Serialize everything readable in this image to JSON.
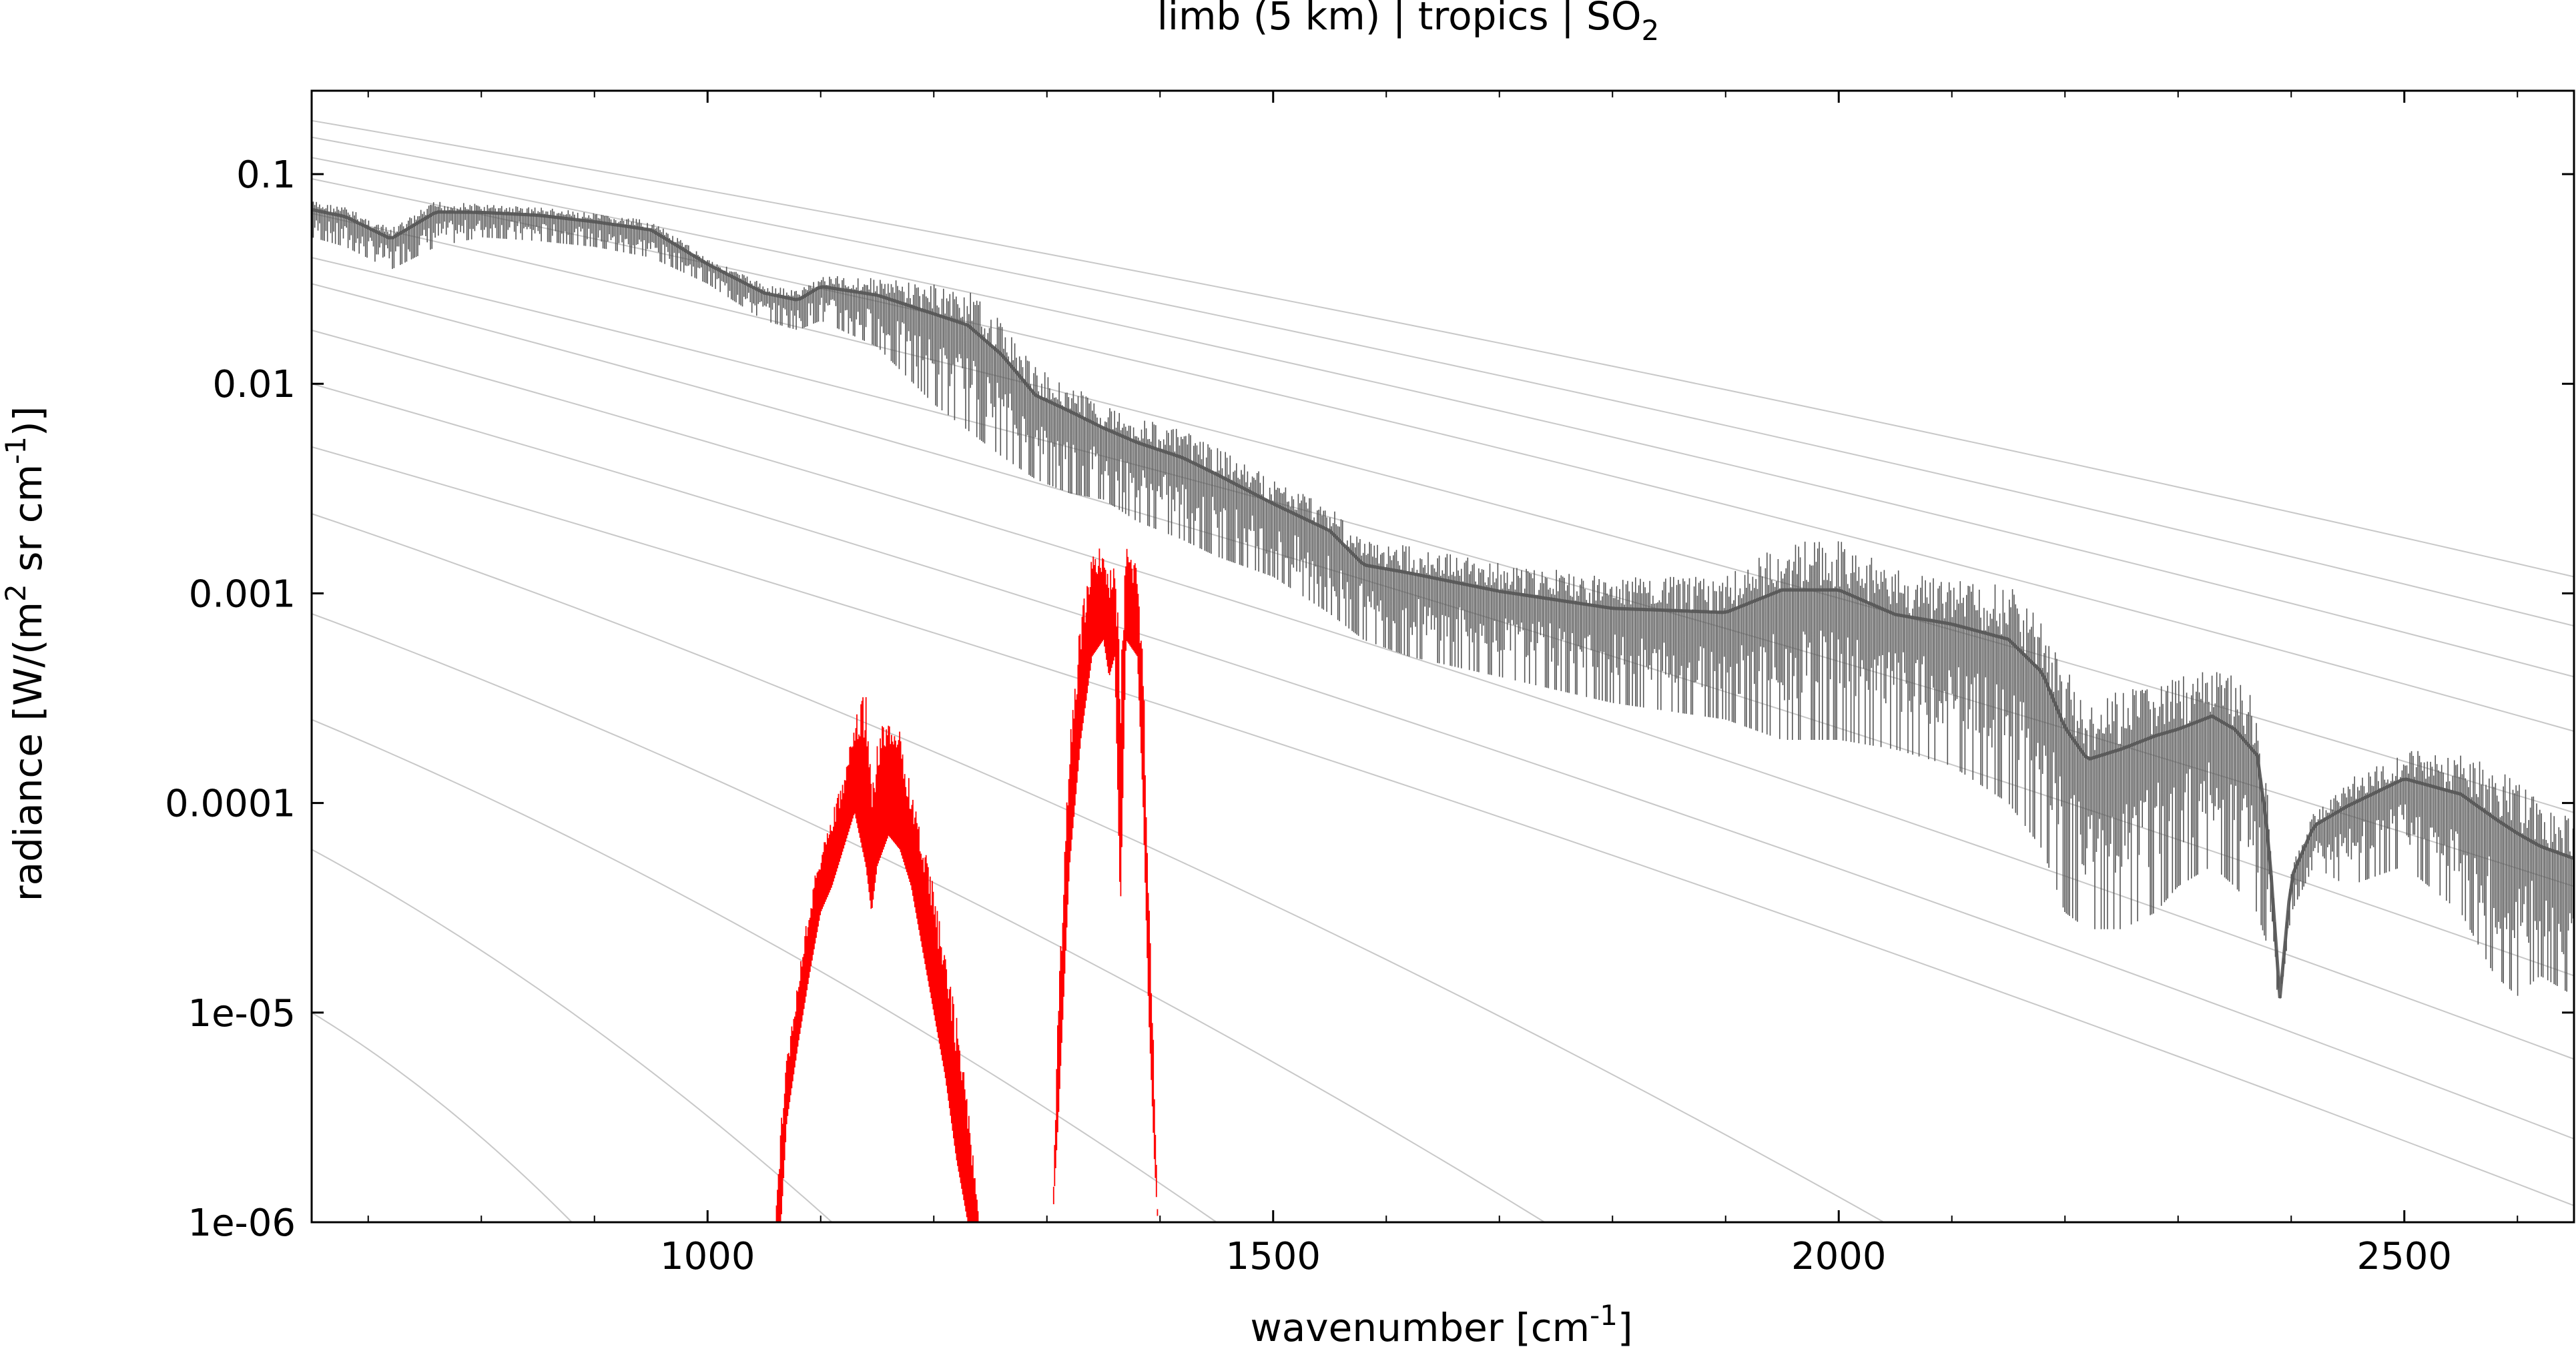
{
  "chart_data": {
    "type": "line",
    "title": {
      "prefix": "limb (5 km) | tropics | SO",
      "subscript": "2"
    },
    "xlabel": {
      "prefix": "wavenumber [cm",
      "superscript": "-1",
      "suffix": "]"
    },
    "ylabel": {
      "part1": "radiance [W/(m",
      "sup1": "2",
      "part2": " sr cm",
      "sup2": "-1",
      "part3": ")]"
    },
    "x_range": [
      650,
      2650
    ],
    "y_range": [
      1e-06,
      0.25
    ],
    "y_scale": "log",
    "x_ticks": [
      {
        "value": 1000,
        "label": "1000"
      },
      {
        "value": 1500,
        "label": "1500"
      },
      {
        "value": 2000,
        "label": "2000"
      },
      {
        "value": 2500,
        "label": "2500"
      }
    ],
    "y_ticks": [
      {
        "value": 0.1,
        "label": "0.1"
      },
      {
        "value": 0.01,
        "label": "0.01"
      },
      {
        "value": 0.001,
        "label": "0.001"
      },
      {
        "value": 0.0001,
        "label": "0.0001"
      },
      {
        "value": 1e-05,
        "label": "1e-05"
      },
      {
        "value": 1e-06,
        "label": "1e-06"
      }
    ],
    "grid": false,
    "legend": "none",
    "colors": {
      "total_spectrum": "#555555",
      "so2_contribution": "#ff0000",
      "reference_curves": "#c8c8c8"
    },
    "reference_curves_at_edges": [
      {
        "y_at_650": 0.18,
        "y_at_2650": 0.0012
      },
      {
        "y_at_650": 0.15,
        "y_at_2650": 0.0007
      },
      {
        "y_at_650": 0.12,
        "y_at_2650": 0.0004
      },
      {
        "y_at_650": 0.095,
        "y_at_2650": 0.00022
      },
      {
        "y_at_650": 0.065,
        "y_at_2650": 9e-05
      },
      {
        "y_at_650": 0.04,
        "y_at_2650": 4e-05
      },
      {
        "y_at_650": 0.03,
        "y_at_2650": 1.5e-05
      },
      {
        "y_at_650": 0.018,
        "y_at_2650": 6e-06
      },
      {
        "y_at_650": 0.01,
        "y_at_2650": 2.5e-06
      },
      {
        "y_at_650": 0.005,
        "y_at_2650": 1.2e-06
      }
    ],
    "reference_curves_steep": [
      {
        "y_at_650": 0.0024,
        "x_at_ymin": 2040
      },
      {
        "y_at_650": 0.0008,
        "x_at_ymin": 1740
      },
      {
        "y_at_650": 0.00025,
        "x_at_ymin": 1450
      },
      {
        "y_at_650": 6e-05,
        "x_at_ymin": 1110
      },
      {
        "y_at_650": 1e-05,
        "x_at_ymin": 880
      }
    ],
    "series": [
      {
        "role": "total",
        "envelope_x": [
          650,
          680,
          720,
          760,
          800,
          850,
          900,
          950,
          1000,
          1050,
          1080,
          1100,
          1150,
          1200,
          1230,
          1260,
          1290,
          1320,
          1350,
          1380,
          1420,
          1450,
          1500,
          1550,
          1580,
          1620,
          1700,
          1800,
          1900,
          1950,
          2000,
          2050,
          2100,
          2150,
          2180,
          2200,
          2220,
          2250,
          2280,
          2300,
          2330,
          2350,
          2370,
          2380,
          2390,
          2400,
          2420,
          2450,
          2500,
          2550,
          2580,
          2600,
          2620,
          2650
        ],
        "envelope_top": [
          0.075,
          0.07,
          0.055,
          0.075,
          0.072,
          0.07,
          0.065,
          0.06,
          0.04,
          0.03,
          0.028,
          0.033,
          0.032,
          0.03,
          0.028,
          0.02,
          0.012,
          0.01,
          0.008,
          0.007,
          0.006,
          0.005,
          0.0035,
          0.0027,
          0.0018,
          0.0017,
          0.0014,
          0.0012,
          0.0012,
          0.0018,
          0.0018,
          0.0013,
          0.0012,
          0.0011,
          0.0008,
          0.00045,
          0.0003,
          0.00035,
          0.0004,
          0.0004,
          0.00045,
          0.0004,
          0.0003,
          0.0001,
          1.2e-05,
          5e-05,
          9e-05,
          0.00013,
          0.00018,
          0.00017,
          0.00015,
          0.00013,
          0.0001,
          9e-05
        ],
        "envelope_bottom": [
          0.05,
          0.045,
          0.035,
          0.045,
          0.05,
          0.048,
          0.045,
          0.04,
          0.03,
          0.02,
          0.018,
          0.02,
          0.015,
          0.008,
          0.006,
          0.0045,
          0.0035,
          0.003,
          0.0028,
          0.0022,
          0.0018,
          0.0015,
          0.0012,
          0.0008,
          0.0006,
          0.0005,
          0.0004,
          0.0003,
          0.00025,
          0.0002,
          0.0002,
          0.00018,
          0.00015,
          0.0001,
          6e-05,
          3e-05,
          2.5e-05,
          2.5e-05,
          3e-05,
          4e-05,
          5e-05,
          4e-05,
          3e-05,
          2e-05,
          1.1e-05,
          3e-05,
          5e-05,
          4e-05,
          5e-05,
          3e-05,
          1.5e-05,
          1.2e-05,
          1.5e-05,
          1.2e-05
        ]
      },
      {
        "role": "so2",
        "bands": [
          {
            "x": [
              1060,
              1065,
              1070,
              1080,
              1090,
              1100,
              1110,
              1120,
              1130,
              1140,
              1145,
              1150,
              1160,
              1170,
              1180,
              1190,
              1200,
              1210,
              1220,
              1230,
              1240
            ],
            "top": [
              1e-06,
              3e-06,
              6e-06,
              1.5e-05,
              3.5e-05,
              6e-05,
              9e-05,
              0.00013,
              0.00025,
              0.00035,
              0.00012,
              0.0002,
              0.0003,
              0.00022,
              0.00012,
              7e-05,
              4e-05,
              2e-05,
              1e-05,
              4e-06,
              1e-06
            ],
            "bottom": [
              1e-06,
              1e-06,
              3e-06,
              7e-06,
              1.5e-05,
              3e-05,
              4e-05,
              6e-05,
              9e-05,
              5e-05,
              3e-05,
              5e-05,
              7e-05,
              6e-05,
              4e-05,
              2e-05,
              1e-05,
              5e-06,
              2e-06,
              1e-06,
              1e-06
            ]
          },
          {
            "x": [
              1305,
              1310,
              1320,
              1330,
              1340,
              1350,
              1355,
              1360,
              1365,
              1370,
              1380,
              1385,
              1390,
              1395,
              1398
            ],
            "top": [
              1e-06,
              1.2e-05,
              0.0002,
              0.0008,
              0.0015,
              0.0018,
              0.0012,
              0.0016,
              0.0005,
              0.0018,
              0.0013,
              0.0005,
              5e-05,
              5e-06,
              1e-06
            ],
            "bottom": [
              1e-06,
              3e-06,
              5e-05,
              0.0002,
              0.0005,
              0.0006,
              0.0004,
              0.0005,
              3e-05,
              0.0006,
              0.0005,
              0.0001,
              1e-05,
              2e-06,
              1e-06
            ]
          }
        ]
      }
    ]
  }
}
